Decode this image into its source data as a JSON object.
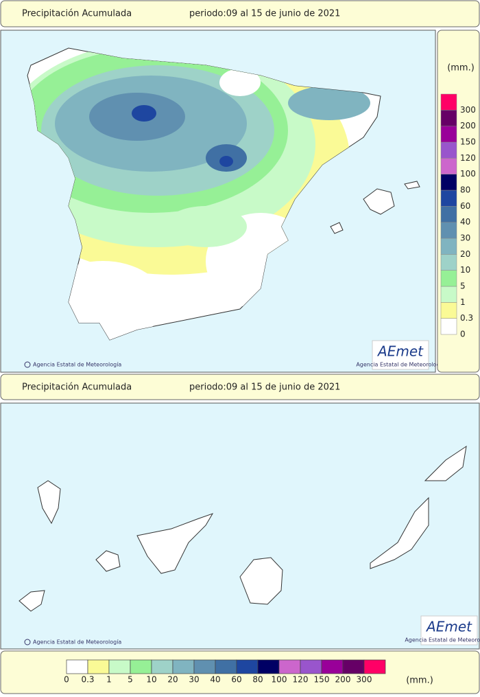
{
  "header": {
    "title": "Precipitación Acumulada",
    "period": "periodo:09 al 15 de junio de 2021"
  },
  "credit": "Agencia Estatal de Meteorología",
  "logo": {
    "name": "AEmet",
    "subtitle": "Agencia Estatal de Meteorología"
  },
  "legend": {
    "unit": "(mm.)",
    "levels": [
      {
        "label": "0",
        "color": "#ffffff"
      },
      {
        "label": "0.3",
        "color": "#fafa96"
      },
      {
        "label": "1",
        "color": "#c8fac8"
      },
      {
        "label": "5",
        "color": "#96f096"
      },
      {
        "label": "10",
        "color": "#9ed2c8"
      },
      {
        "label": "20",
        "color": "#80b4c0"
      },
      {
        "label": "30",
        "color": "#6090b0"
      },
      {
        "label": "40",
        "color": "#4070a4"
      },
      {
        "label": "60",
        "color": "#1e46a0"
      },
      {
        "label": "80",
        "color": "#000064"
      },
      {
        "label": "100",
        "color": "#cc66cc"
      },
      {
        "label": "120",
        "color": "#9955cc"
      },
      {
        "label": "150",
        "color": "#990099"
      },
      {
        "label": "200",
        "color": "#660066"
      },
      {
        "label": "300",
        "color": "#ff0066"
      }
    ]
  }
}
